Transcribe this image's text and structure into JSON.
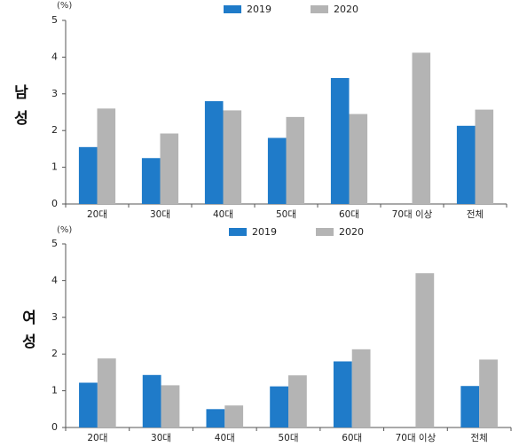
{
  "chart_data": [
    {
      "type": "bar",
      "panel_label": "남성",
      "unit_label": "(%)",
      "categories": [
        "20대",
        "30대",
        "40대",
        "50대",
        "60대",
        "70대 이상",
        "전체"
      ],
      "series": [
        {
          "name": "2019",
          "color": "#1f7bc9",
          "values": [
            1.55,
            1.25,
            2.8,
            1.8,
            3.43,
            null,
            2.13
          ]
        },
        {
          "name": "2020",
          "color": "#b4b4b4",
          "values": [
            2.6,
            1.92,
            2.55,
            2.37,
            2.45,
            4.12,
            2.57
          ]
        }
      ],
      "ylim": [
        0,
        5
      ],
      "yticks": [
        "0",
        "1",
        "2",
        "3",
        "4",
        "5"
      ],
      "legend_position": "top-center",
      "grid": false
    },
    {
      "type": "bar",
      "panel_label": "여성",
      "unit_label": "(%)",
      "categories": [
        "20대",
        "30대",
        "40대",
        "50대",
        "60대",
        "70대 이상",
        "전체"
      ],
      "series": [
        {
          "name": "2019",
          "color": "#1f7bc9",
          "values": [
            1.22,
            1.43,
            0.5,
            1.12,
            1.8,
            null,
            1.13
          ]
        },
        {
          "name": "2020",
          "color": "#b4b4b4",
          "values": [
            1.88,
            1.15,
            0.6,
            1.42,
            2.13,
            4.2,
            1.85
          ]
        }
      ],
      "ylim": [
        0,
        5
      ],
      "yticks": [
        "0",
        "1",
        "2",
        "3",
        "4",
        "5"
      ],
      "legend_position": "top-center",
      "grid": false
    }
  ]
}
